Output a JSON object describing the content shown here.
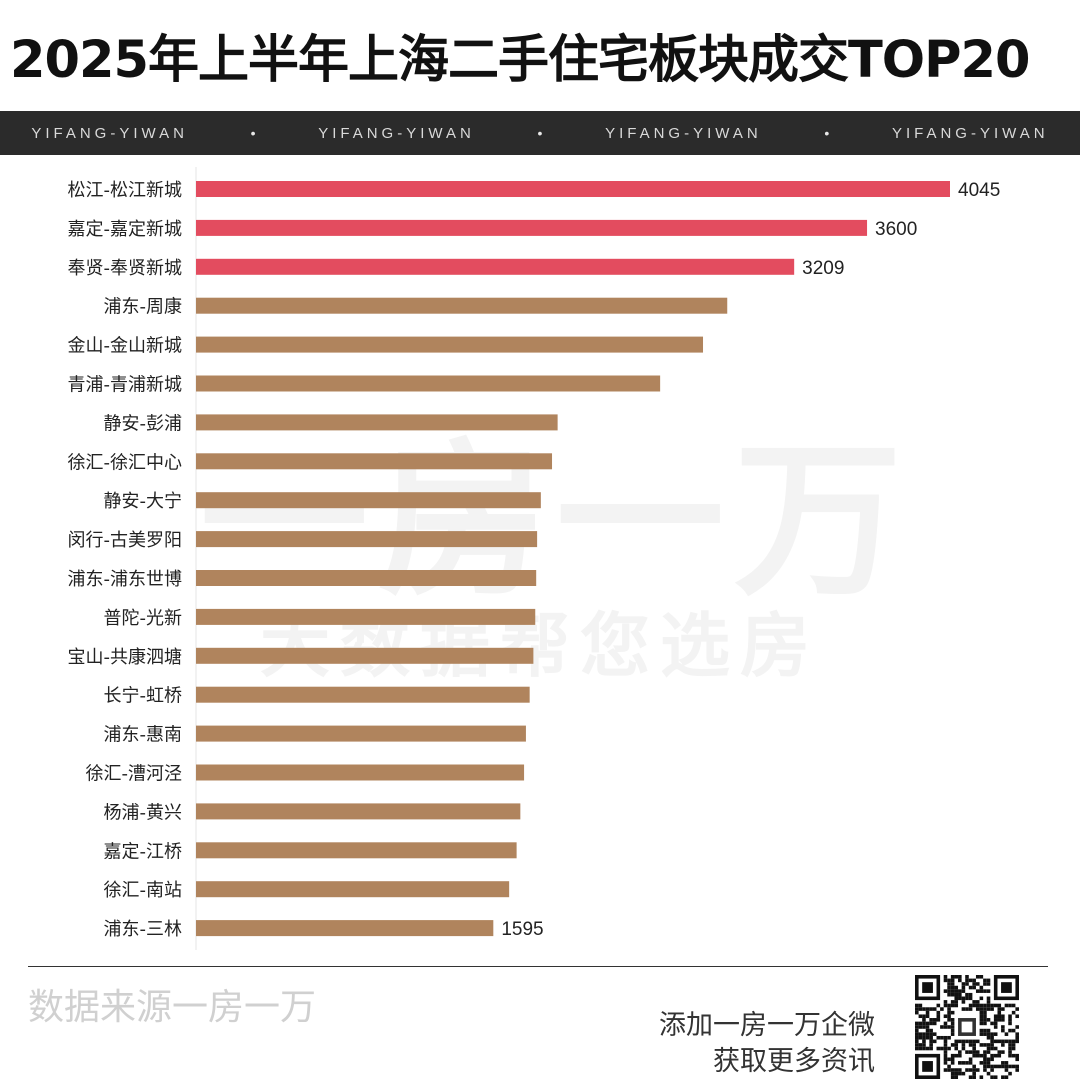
{
  "title": "2025年上半年上海二手住宅板块成交TOP20",
  "banner": {
    "items": [
      "YIFANG-YIWAN",
      "YIFANG-YIWAN",
      "YIFANG-YIWAN",
      "YIFANG-YIWAN"
    ],
    "separator": "•"
  },
  "watermark": {
    "line1": "一房一万",
    "line2": "大数据帮您选房"
  },
  "colors": {
    "highlight": "#e34c5f",
    "bar": "#b0845d",
    "banner_bg": "#2b2b2b"
  },
  "chart_data": {
    "type": "bar",
    "orientation": "horizontal",
    "title": "2025年上半年上海二手住宅板块成交TOP20",
    "categories": [
      "松江-松江新城",
      "嘉定-嘉定新城",
      "奉贤-奉贤新城",
      "浦东-周康",
      "金山-金山新城",
      "青浦-青浦新城",
      "静安-彭浦",
      "徐汇-徐汇中心",
      "静安-大宁",
      "闵行-古美罗阳",
      "浦东-浦东世博",
      "普陀-光新",
      "宝山-共康泗塘",
      "长宁-虹桥",
      "浦东-惠南",
      "徐汇-漕河泾",
      "杨浦-黄兴",
      "嘉定-江桥",
      "徐汇-南站",
      "浦东-三林"
    ],
    "values": [
      4045,
      3600,
      3209,
      2850,
      2720,
      2490,
      1940,
      1910,
      1850,
      1830,
      1825,
      1820,
      1810,
      1790,
      1770,
      1760,
      1740,
      1720,
      1680,
      1595
    ],
    "data_labels": [
      "4045",
      "3600",
      "3209",
      "",
      "",
      "",
      "",
      "",
      "",
      "",
      "",
      "",
      "",
      "",
      "",
      "",
      "",
      "",
      "",
      "1595"
    ],
    "highlight_top": 3,
    "xlim": [
      0,
      4045
    ],
    "grid": false
  },
  "footer": {
    "source": "数据来源一房一万",
    "cta_line1": "添加一房一万企微",
    "cta_line2": "获取更多资讯"
  }
}
